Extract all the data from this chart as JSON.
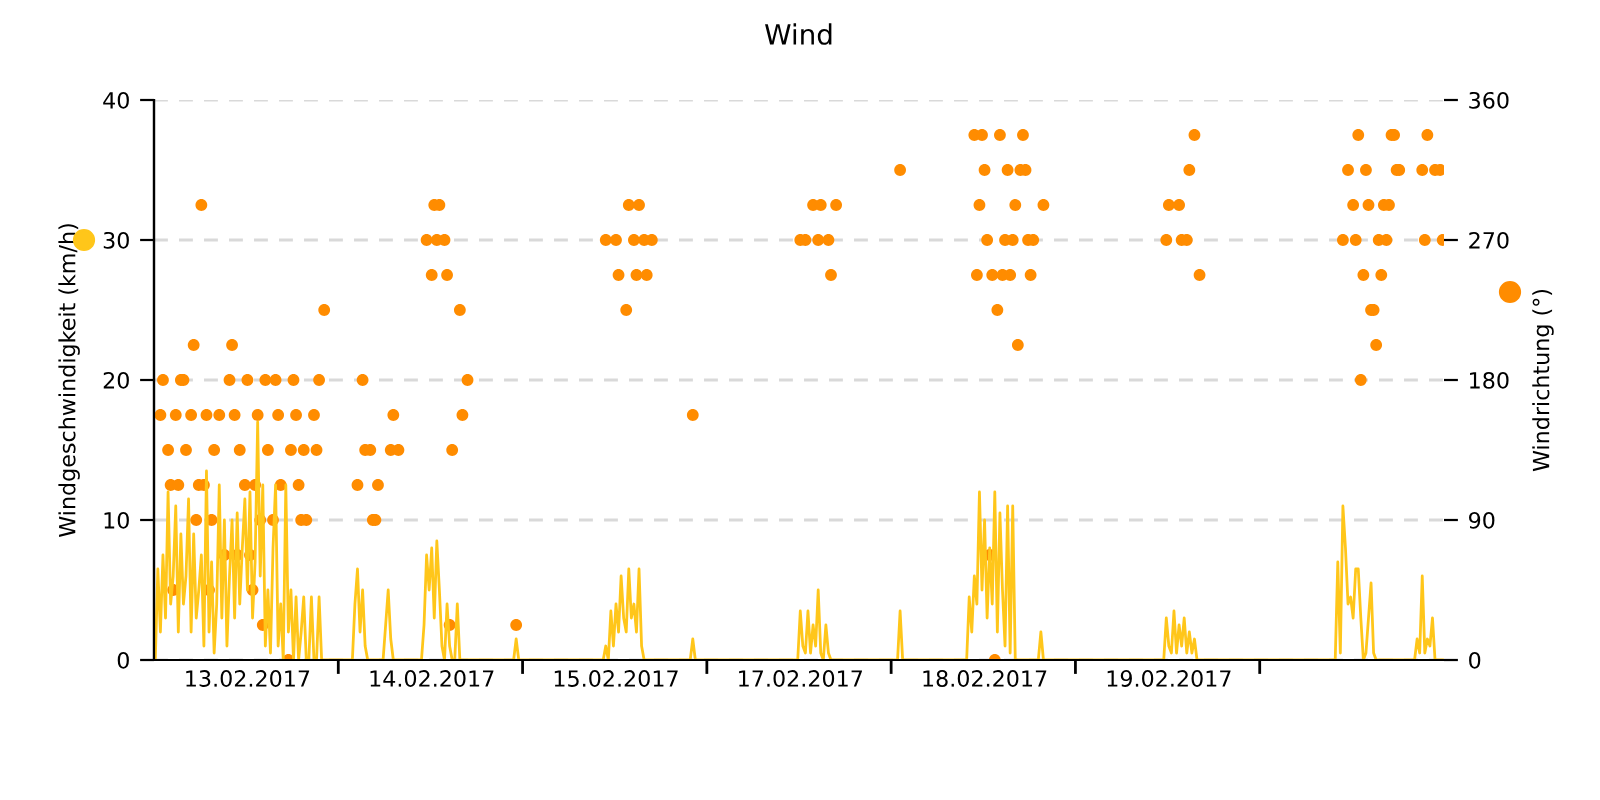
{
  "chart_data": {
    "type": "scatter",
    "title": "Wind",
    "ylabel": "Windgeschwindigkeit (km/h)",
    "y2label": "Windrichtung (°)",
    "categories": [
      null,
      null,
      null,
      null,
      null,
      null,
      null,
      null,
      null,
      null,
      null,
      null,
      null,
      null,
      null,
      null,
      null,
      null,
      null,
      null,
      null,
      null,
      null,
      null,
      null,
      null,
      null,
      null,
      null,
      null,
      null,
      null,
      null,
      null,
      null,
      null,
      "13.02.2017",
      null,
      null,
      null,
      null,
      null,
      null,
      null,
      null,
      null,
      null,
      null,
      null,
      null,
      null,
      null,
      null,
      null,
      null,
      null,
      null,
      null,
      null,
      null,
      null,
      null,
      null,
      null,
      null,
      null,
      null,
      null,
      null,
      null,
      null,
      null,
      null,
      null,
      null,
      null,
      null,
      null,
      null,
      null,
      null,
      null,
      null,
      null,
      null,
      null,
      null,
      null,
      null,
      null,
      null,
      null,
      null,
      null,
      null,
      null,
      null,
      null,
      null,
      null,
      null,
      null,
      null,
      null,
      null,
      null,
      null,
      null,
      "14.02.2017",
      null,
      null,
      null,
      null,
      null,
      null,
      null,
      null,
      null,
      null,
      null,
      null,
      null,
      null,
      null,
      null,
      null,
      null,
      null,
      null,
      null,
      null,
      null,
      null,
      null,
      null,
      null,
      null,
      null,
      null,
      null,
      null,
      null,
      null,
      null,
      null,
      null,
      null,
      null,
      null,
      null,
      null,
      null,
      null,
      null,
      null,
      null,
      null,
      null,
      null,
      null,
      null,
      null,
      null,
      null,
      null,
      null,
      null,
      null,
      null,
      null,
      null,
      null,
      null,
      null,
      null,
      null,
      null,
      null,
      null,
      null,
      "15.02.2017",
      null,
      null,
      null,
      null,
      null,
      null,
      null,
      null,
      null,
      null,
      null,
      null,
      null,
      null,
      null,
      null,
      null,
      null,
      null,
      null,
      null,
      null,
      null,
      null,
      null,
      null,
      null,
      null,
      null,
      null,
      null,
      null,
      null,
      null,
      null,
      null,
      null,
      null,
      null,
      null,
      null,
      null,
      null,
      null,
      null,
      null,
      null,
      null,
      null,
      null,
      null,
      null,
      null,
      null,
      null,
      null,
      null,
      null,
      null,
      null,
      null,
      null,
      null,
      null,
      null,
      null,
      null,
      null,
      null,
      null,
      null,
      "17.02.2017",
      null,
      null,
      null,
      null,
      null,
      null,
      null,
      null,
      null,
      null,
      null,
      null,
      null,
      null,
      null,
      null,
      null,
      null,
      null,
      null,
      null,
      null,
      null,
      null,
      null,
      null,
      null,
      null,
      null,
      null,
      null,
      null,
      null,
      null,
      null,
      null,
      null,
      null,
      null,
      null,
      null,
      null,
      null,
      null,
      null,
      null,
      null,
      null,
      null,
      null,
      null,
      null,
      null,
      null,
      null,
      null,
      null,
      null,
      null,
      null,
      null,
      null,
      null,
      null,
      null,
      null,
      null,
      null,
      null,
      null,
      null,
      "18.02.2017",
      null,
      null,
      null,
      null,
      null,
      null,
      null,
      null,
      null,
      null,
      null,
      null,
      null,
      null,
      null,
      null,
      null,
      null,
      null,
      null,
      null,
      null,
      null,
      null,
      null,
      null,
      null,
      null,
      null,
      null,
      null,
      null,
      null,
      null,
      null,
      null,
      null,
      null,
      null,
      null,
      null,
      null,
      null,
      null,
      null,
      null,
      null,
      null,
      null,
      null,
      null,
      null,
      null,
      null,
      null,
      null,
      null,
      null,
      null,
      null,
      null,
      null,
      null,
      null,
      null,
      null,
      null,
      null,
      null,
      null,
      null,
      "19.02.2017",
      null,
      null,
      null,
      null,
      null,
      null,
      null,
      null,
      null,
      null,
      null,
      null,
      null,
      null,
      null,
      null,
      null,
      null,
      null,
      null,
      null,
      null,
      null,
      null,
      null,
      null,
      null,
      null,
      null,
      null,
      null,
      null,
      null,
      null,
      null,
      null,
      null,
      null,
      null,
      null,
      null,
      null,
      null,
      null,
      null,
      null,
      null,
      null,
      null,
      null,
      null,
      null,
      null,
      null,
      null,
      null,
      null,
      null,
      null,
      null,
      null,
      null,
      null,
      null,
      null,
      null,
      null,
      null,
      null,
      null,
      null,
      null,
      null,
      null,
      null,
      null,
      null,
      null,
      null,
      null,
      null,
      null,
      null,
      null,
      null,
      null,
      null,
      null,
      null,
      null,
      null,
      null,
      null,
      null,
      null,
      null,
      null,
      null,
      null,
      null,
      null,
      null,
      null,
      null,
      null,
      null,
      null
    ],
    "ylim": [
      0,
      40
    ],
    "yticks": [
      0,
      10,
      20,
      30,
      40
    ],
    "y2lim": [
      0,
      360
    ],
    "y2ticks": [
      0,
      90,
      180,
      270,
      360
    ],
    "grid": "y",
    "series": [
      {
        "type": "line",
        "color": "#ffc61a",
        "marker": "none",
        "line_style": "solid",
        "values": [
          0,
          6.5,
          2,
          7.5,
          3,
          12,
          4,
          6,
          11,
          2,
          9,
          4,
          6,
          11.5,
          2,
          9,
          3,
          5,
          7.5,
          1,
          13.5,
          2,
          7,
          0.5,
          4,
          12.5,
          3,
          10,
          1,
          6,
          10,
          3,
          10.5,
          4,
          8,
          11.5,
          5,
          12,
          3,
          7,
          17,
          6,
          12.5,
          1,
          5,
          0.5,
          8,
          12.5,
          1,
          4,
          0,
          12.5,
          2,
          5,
          0,
          4.5,
          0,
          2,
          4.5,
          0,
          0,
          4.5,
          0,
          0,
          4.5,
          0,
          0,
          0,
          0,
          0,
          0,
          0,
          0,
          0,
          0,
          0,
          0,
          0,
          4,
          6.5,
          2,
          5,
          1,
          0,
          0,
          0,
          0,
          0,
          0,
          0,
          2.5,
          5,
          1.5,
          0,
          0,
          0,
          0,
          0,
          0,
          0,
          0,
          0,
          0,
          0,
          0,
          2.5,
          7.5,
          5,
          8,
          3,
          8.5,
          5,
          1,
          0,
          4,
          1,
          0,
          0,
          4,
          0,
          0,
          0,
          0,
          0,
          0,
          0,
          0,
          0,
          0,
          0,
          0,
          0,
          0,
          0,
          0,
          0,
          0,
          0,
          0,
          0,
          0,
          1.5,
          0,
          0,
          0,
          0,
          0,
          0,
          0,
          0,
          0,
          0,
          0,
          0,
          0,
          0,
          0,
          0,
          0,
          0,
          0,
          0,
          0,
          0,
          0,
          0,
          0,
          0,
          0,
          0,
          0,
          0,
          0,
          0,
          0,
          0,
          1,
          0,
          3.5,
          1,
          4,
          2,
          6,
          3,
          2,
          6.5,
          3,
          4,
          2,
          6.5,
          1,
          0,
          0,
          0,
          0,
          0,
          0,
          0,
          0,
          0,
          0,
          0,
          0,
          0,
          0,
          0,
          0,
          0,
          0,
          0,
          1.5,
          0,
          0,
          0,
          0,
          0,
          0,
          0,
          0,
          0,
          0,
          0,
          0,
          0,
          0,
          0,
          0,
          0,
          0,
          0,
          0,
          0,
          0,
          0,
          0,
          0,
          0,
          0,
          0,
          0,
          0,
          0,
          0,
          0,
          0,
          0,
          0,
          0,
          0,
          0,
          0,
          0,
          3.5,
          1,
          0.5,
          3.5,
          0.5,
          2.5,
          1,
          5,
          0.5,
          0,
          2.5,
          0.5,
          0,
          0,
          0,
          0,
          0,
          0,
          0,
          0,
          0,
          0,
          0,
          0,
          0,
          0,
          0,
          0,
          0,
          0,
          0,
          0,
          0,
          0,
          0,
          0,
          0,
          0,
          0,
          3.5,
          0,
          0,
          0,
          0,
          0,
          0,
          0,
          0,
          0,
          0,
          0,
          0,
          0,
          0,
          0,
          0,
          0,
          0,
          0,
          0,
          0,
          0,
          0,
          0,
          0,
          0,
          4.5,
          2,
          6,
          4,
          12,
          5,
          10,
          3,
          8,
          4,
          12,
          2,
          10.5,
          5,
          1,
          11,
          0.5,
          11,
          0,
          0,
          0,
          0,
          0,
          0,
          0,
          0,
          0,
          0,
          2,
          0,
          0,
          0,
          0,
          0,
          0,
          0,
          0,
          0,
          0,
          0,
          0,
          0,
          0,
          0,
          0,
          0,
          0,
          0,
          0,
          0,
          0,
          0,
          0,
          0,
          0,
          0,
          0,
          0,
          0,
          0,
          0,
          0,
          0,
          0,
          0,
          0,
          0,
          0,
          0,
          0,
          0,
          0,
          0,
          0,
          0,
          0,
          0,
          3,
          1,
          0.5,
          3.5,
          0.5,
          2.5,
          1,
          3,
          0.5,
          2,
          0.5,
          1.5,
          0,
          0,
          0,
          0,
          0,
          0,
          0,
          0,
          0,
          0,
          0,
          0,
          0,
          0,
          0,
          0,
          0,
          0,
          0,
          0,
          0,
          0,
          0,
          0,
          0,
          0,
          0,
          0,
          0,
          0,
          0,
          0,
          0,
          0,
          0,
          0,
          0,
          0,
          0,
          0,
          0,
          0,
          0,
          0,
          0,
          0,
          0,
          0,
          0,
          0,
          0,
          0,
          0,
          0,
          0,
          7,
          0.5,
          11,
          8,
          4,
          4.5,
          3,
          6.5,
          6.5,
          3,
          0,
          0.5,
          3,
          5.5,
          0.5,
          0,
          0,
          0,
          0,
          0,
          0,
          0,
          0,
          0,
          0,
          0,
          0,
          0,
          0,
          0,
          0,
          1.5,
          0.5,
          6,
          0.5,
          1.5,
          1,
          3,
          0,
          0,
          0,
          0
        ]
      },
      {
        "axis": "y2",
        "color": "#ff8c00",
        "marker": "circle",
        "values": [
          null,
          null,
          157.5,
          180,
          null,
          135,
          112.5,
          45,
          157.5,
          112.5,
          180,
          180,
          135,
          null,
          157.5,
          202.5,
          90,
          112.5,
          292.5,
          112.5,
          157.5,
          45,
          90,
          135,
          null,
          157.5,
          null,
          67.5,
          null,
          180,
          202.5,
          157.5,
          67.5,
          135,
          null,
          112.5,
          180,
          67.5,
          45,
          112.5,
          157.5,
          90,
          22.5,
          180,
          135,
          null,
          90,
          180,
          157.5,
          112.5,
          null,
          null,
          0,
          135,
          180,
          157.5,
          112.5,
          90,
          135,
          90,
          null,
          null,
          157.5,
          135,
          180,
          null,
          225,
          null,
          null,
          null,
          null,
          null,
          null,
          null,
          null,
          null,
          null,
          null,
          null,
          112.5,
          null,
          180,
          135,
          null,
          135,
          90,
          90,
          112.5,
          null,
          null,
          null,
          null,
          135,
          157.5,
          null,
          135,
          null,
          null,
          null,
          null,
          null,
          null,
          null,
          null,
          null,
          null,
          270,
          null,
          247.5,
          292.5,
          270,
          292.5,
          null,
          270,
          247.5,
          22.5,
          135,
          null,
          null,
          225,
          157.5,
          null,
          180,
          null,
          null,
          null,
          null,
          null,
          null,
          null,
          null,
          null,
          null,
          null,
          null,
          null,
          null,
          null,
          null,
          null,
          null,
          22.5,
          null,
          null,
          null,
          null,
          null,
          null,
          null,
          null,
          null,
          null,
          null,
          null,
          null,
          null,
          null,
          null,
          null,
          null,
          null,
          null,
          null,
          null,
          null,
          null,
          null,
          null,
          null,
          null,
          null,
          null,
          null,
          null,
          null,
          null,
          270,
          null,
          null,
          null,
          270,
          247.5,
          null,
          null,
          225,
          292.5,
          null,
          270,
          247.5,
          292.5,
          null,
          270,
          247.5,
          null,
          270,
          null,
          null,
          null,
          null,
          null,
          null,
          null,
          null,
          null,
          null,
          null,
          null,
          null,
          null,
          null,
          157.5,
          null,
          null,
          null,
          null,
          null,
          null,
          null,
          null,
          null,
          null,
          null,
          null,
          null,
          null,
          null,
          null,
          null,
          null,
          null,
          null,
          null,
          null,
          null,
          null,
          null,
          null,
          null,
          null,
          null,
          null,
          null,
          null,
          null,
          null,
          null,
          null,
          null,
          null,
          null,
          null,
          null,
          270,
          null,
          270,
          null,
          null,
          292.5,
          null,
          270,
          292.5,
          null,
          null,
          270,
          247.5,
          null,
          292.5,
          null,
          null,
          null,
          null,
          null,
          null,
          null,
          null,
          null,
          null,
          null,
          null,
          null,
          null,
          null,
          null,
          null,
          null,
          null,
          null,
          null,
          null,
          null,
          null,
          315,
          null,
          null,
          null,
          null,
          null,
          null,
          null,
          null,
          null,
          null,
          null,
          null,
          null,
          null,
          null,
          null,
          null,
          null,
          null,
          null,
          null,
          null,
          null,
          null,
          null,
          null,
          null,
          null,
          337.5,
          247.5,
          292.5,
          337.5,
          315,
          270,
          67.5,
          247.5,
          0,
          225,
          337.5,
          247.5,
          270,
          315,
          247.5,
          270,
          292.5,
          202.5,
          315,
          337.5,
          315,
          270,
          247.5,
          270,
          null,
          null,
          null,
          292.5,
          null,
          null,
          null,
          null,
          null,
          null,
          null,
          null,
          null,
          null,
          null,
          null,
          null,
          null,
          null,
          null,
          null,
          null,
          null,
          null,
          null,
          null,
          null,
          null,
          null,
          null,
          null,
          null,
          null,
          null,
          null,
          null,
          null,
          null,
          null,
          null,
          null,
          null,
          null,
          null,
          null,
          null,
          null,
          null,
          null,
          null,
          null,
          270,
          292.5,
          null,
          null,
          null,
          292.5,
          270,
          null,
          270,
          315,
          null,
          337.5,
          null,
          247.5,
          null,
          null,
          null,
          null,
          null,
          null,
          null,
          null,
          null,
          null,
          null,
          null,
          null,
          null,
          null,
          null,
          null,
          null,
          null,
          null,
          null,
          null,
          null,
          null,
          null,
          null,
          null,
          null,
          null,
          null,
          null,
          null,
          null,
          null,
          null,
          null,
          null,
          null,
          null,
          null,
          null,
          null,
          null,
          null,
          null,
          null,
          null,
          null,
          null,
          null,
          null,
          null,
          null,
          null,
          null,
          270,
          null,
          315,
          null,
          292.5,
          270,
          337.5,
          180,
          247.5,
          315,
          292.5,
          225,
          225,
          202.5,
          270,
          247.5,
          292.5,
          270,
          292.5,
          337.5,
          337.5,
          315,
          315,
          null,
          null,
          null,
          null,
          null,
          null,
          null,
          null,
          315,
          270,
          337.5,
          null,
          null,
          315,
          null,
          315,
          270
        ]
      }
    ]
  }
}
